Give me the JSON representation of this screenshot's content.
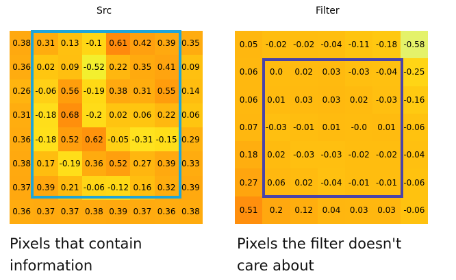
{
  "src": {
    "title": "Src",
    "caption_lines": [
      "Pixels that contain",
      "information"
    ],
    "frame_color": "#1ea5da",
    "values": [
      [
        "0.38",
        "0.31",
        "0.13",
        "-0.1",
        "0.61",
        "0.42",
        "0.39",
        "0.35"
      ],
      [
        "0.36",
        "0.02",
        "0.09",
        "-0.52",
        "0.22",
        "0.35",
        "0.41",
        "0.09"
      ],
      [
        "0.26",
        "-0.06",
        "0.56",
        "-0.19",
        "0.38",
        "0.31",
        "0.55",
        "0.14"
      ],
      [
        "0.31",
        "-0.18",
        "0.68",
        "-0.2",
        "0.02",
        "0.06",
        "0.22",
        "0.06"
      ],
      [
        "0.36",
        "-0.18",
        "0.52",
        "0.62",
        "-0.05",
        "-0.31",
        "-0.15",
        "0.29"
      ],
      [
        "0.38",
        "0.17",
        "-0.19",
        "0.36",
        "0.52",
        "0.27",
        "0.39",
        "0.33"
      ],
      [
        "0.37",
        "0.39",
        "0.21",
        "-0.06",
        "-0.12",
        "0.16",
        "0.32",
        "0.39"
      ],
      [
        "0.36",
        "0.37",
        "0.37",
        "0.38",
        "0.39",
        "0.37",
        "0.36",
        "0.38"
      ]
    ],
    "colors": [
      [
        "#ffa90f",
        "#ffad0e",
        "#ffc010",
        "#ffd615",
        "#ff8a0d",
        "#ffa00f",
        "#ffa90f",
        "#ffac0f"
      ],
      [
        "#ffac0f",
        "#ffc610",
        "#ffbf10",
        "#f3ef2e",
        "#ffb70f",
        "#ffaa0e",
        "#ffa40f",
        "#ffc010"
      ],
      [
        "#ffb40f",
        "#ffd016",
        "#ff9e0c",
        "#ffd915",
        "#ffa90f",
        "#ffad0e",
        "#ff9d0c",
        "#ffbd0f"
      ],
      [
        "#ffad0f",
        "#ffde1a",
        "#ff8f0c",
        "#ffdc18",
        "#ffc410",
        "#ffc510",
        "#ffb80f",
        "#ffc510"
      ],
      [
        "#ffab0f",
        "#ffe01a",
        "#ff9e0d",
        "#ff930c",
        "#ffcf14",
        "#ffe21e",
        "#ffde19",
        "#ffb20f"
      ],
      [
        "#ffa90f",
        "#ffbd0f",
        "#ffde19",
        "#ffab0e",
        "#ff9f0e",
        "#ffb60f",
        "#ffa90f",
        "#ffac0f"
      ],
      [
        "#ffa80f",
        "#ffa70f",
        "#ffbb0f",
        "#ffd516",
        "#ffd816",
        "#ffbe0f",
        "#ffad0f",
        "#ffa90f"
      ],
      [
        "#ffac0f",
        "#ffaa0f",
        "#ffab0e",
        "#ffaa0f",
        "#ffa90e",
        "#ffab0f",
        "#ffac0f",
        "#ffab0e"
      ]
    ]
  },
  "filter": {
    "title": "Filter",
    "caption_lines": [
      "Pixels the filter doesn't",
      "care about"
    ],
    "frame_color": "#4a44a8",
    "values": [
      [
        "0.05",
        "-0.02",
        "-0.02",
        "-0.04",
        "-0.11",
        "-0.18",
        "-0.58"
      ],
      [
        "0.06",
        "0.0",
        "0.02",
        "0.03",
        "-0.03",
        "-0.04",
        "-0.25"
      ],
      [
        "0.06",
        "0.01",
        "0.03",
        "0.03",
        "0.02",
        "-0.03",
        "-0.16"
      ],
      [
        "0.07",
        "-0.03",
        "-0.01",
        "0.01",
        "-0.0",
        "0.01",
        "-0.06"
      ],
      [
        "0.18",
        "0.02",
        "-0.03",
        "-0.03",
        "-0.02",
        "-0.02",
        "-0.04"
      ],
      [
        "0.27",
        "0.06",
        "0.02",
        "-0.04",
        "-0.01",
        "-0.01",
        "-0.06"
      ],
      [
        "0.51",
        "0.2",
        "0.12",
        "0.04",
        "0.03",
        "0.03",
        "-0.06"
      ]
    ],
    "colors": [
      [
        "#ffb70f",
        "#ffbd0f",
        "#ffbd0f",
        "#ffbe0f",
        "#ffc40f",
        "#ffc810",
        "#e4f26a"
      ],
      [
        "#ffb80f",
        "#ffbc0f",
        "#ffbb0f",
        "#ffba0f",
        "#ffbf10",
        "#ffc010",
        "#ffd515"
      ],
      [
        "#ffb80f",
        "#ffbb0f",
        "#ffba0f",
        "#ffb90f",
        "#ffbb0f",
        "#ffbf10",
        "#ffca11"
      ],
      [
        "#ffb70f",
        "#ffbf10",
        "#ffbd0f",
        "#ffbb0f",
        "#ffbc0f",
        "#ffbb0f",
        "#ffc20f"
      ],
      [
        "#ffae0f",
        "#ffbb0f",
        "#ffbf10",
        "#ffbf10",
        "#ffbd0f",
        "#ffbd0f",
        "#ffc010"
      ],
      [
        "#ffa50e",
        "#ffb80f",
        "#ffbb0f",
        "#ffc010",
        "#ffbd0f",
        "#ffbd0f",
        "#ffc20f"
      ],
      [
        "#ff8f0d",
        "#ffa80f",
        "#ffae0e",
        "#ffb60f",
        "#ffb70f",
        "#ffb70f",
        "#ffc20f"
      ]
    ]
  }
}
